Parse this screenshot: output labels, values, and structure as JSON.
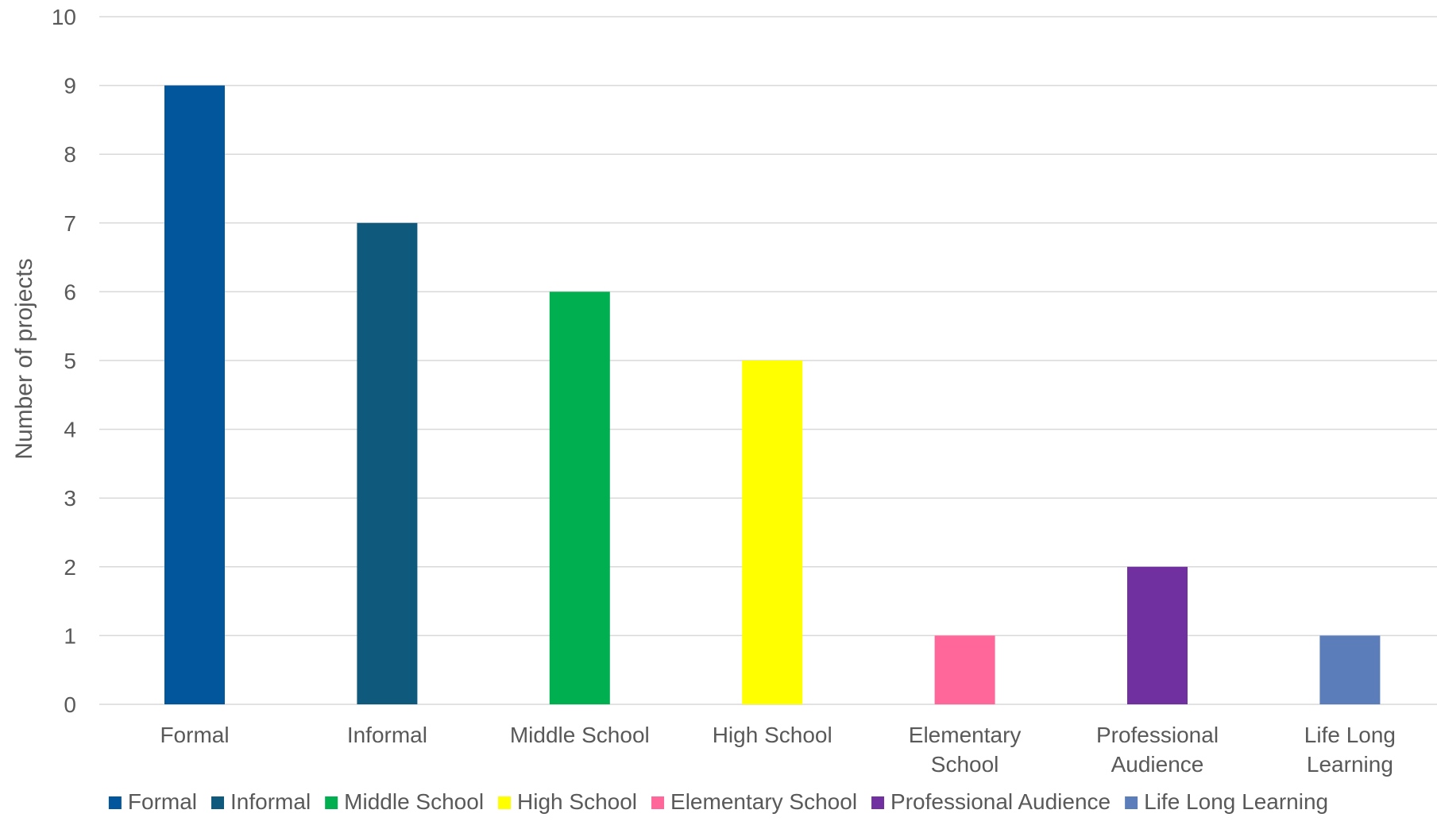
{
  "chart_data": {
    "type": "bar",
    "title": "",
    "xlabel": "",
    "ylabel": "Number of projects",
    "ylim": [
      0,
      10
    ],
    "yticks": [
      0,
      1,
      2,
      3,
      4,
      5,
      6,
      7,
      8,
      9,
      10
    ],
    "grid": true,
    "legend_position": "bottom",
    "categories": [
      "Formal",
      "Informal",
      "Middle School",
      "High School",
      "Elementary School",
      "Professional Audience",
      "Life Long Learning"
    ],
    "tick_label_lines": [
      [
        "Formal"
      ],
      [
        "Informal"
      ],
      [
        "Middle School"
      ],
      [
        "High School"
      ],
      [
        "Elementary",
        "School"
      ],
      [
        "Professional",
        "Audience"
      ],
      [
        "Life Long",
        "Learning"
      ]
    ],
    "values": [
      9,
      7,
      6,
      5,
      1,
      2,
      1
    ],
    "colors": [
      "#02569b",
      "#0f5a7c",
      "#00b050",
      "#ffff00",
      "#ff6699",
      "#7030a0",
      "#5b7db9"
    ],
    "grid_color": "#d9d9d9",
    "text_color": "#595959"
  }
}
